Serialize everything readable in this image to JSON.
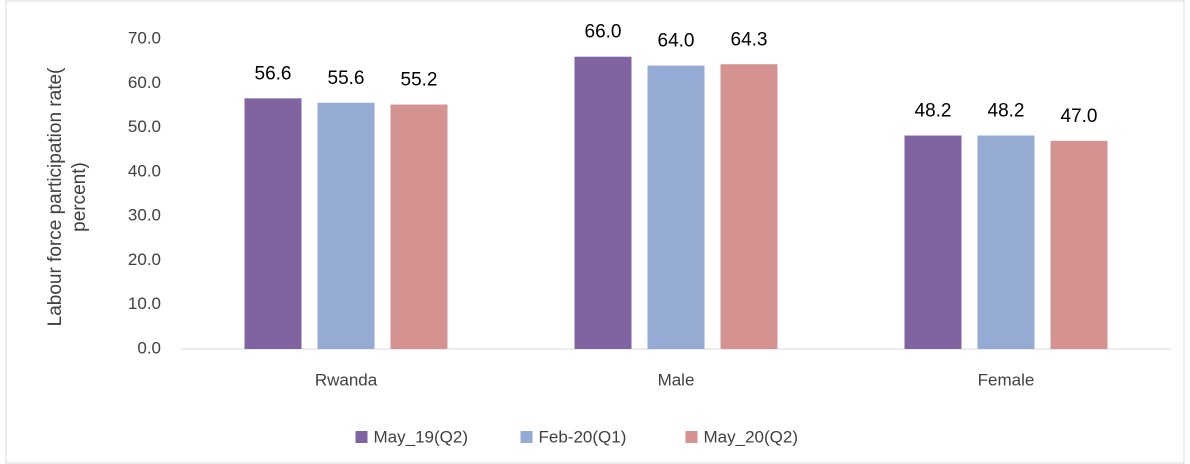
{
  "chart_data": {
    "type": "bar",
    "y_label": [
      "Labour force participation rate(",
      "percent)"
    ],
    "categories": [
      "Rwanda",
      "Male",
      "Female"
    ],
    "series": [
      {
        "name": "May_19(Q2)",
        "color": "#8064a2",
        "values": [
          56.6,
          66.0,
          48.2
        ],
        "value_labels": [
          "56.6",
          "66.0",
          "48.2"
        ]
      },
      {
        "name": "Feb-20(Q1)",
        "color": "#95abd3",
        "values": [
          55.6,
          64.0,
          48.2
        ],
        "value_labels": [
          "55.6",
          "64.0",
          "48.2"
        ]
      },
      {
        "name": "May_20(Q2)",
        "color": "#d49390",
        "values": [
          55.2,
          64.3,
          47.0
        ],
        "value_labels": [
          "55.2",
          "64.3",
          "47.0"
        ]
      }
    ],
    "ylim": [
      0,
      70
    ],
    "yticks": [
      {
        "value": 0,
        "label": "0.0"
      },
      {
        "value": 10,
        "label": "10.0"
      },
      {
        "value": 20,
        "label": "20.0"
      },
      {
        "value": 30,
        "label": "30.0"
      },
      {
        "value": 40,
        "label": "40.0"
      },
      {
        "value": 50,
        "label": "50.0"
      },
      {
        "value": 60,
        "label": "60.0"
      },
      {
        "value": 70,
        "label": "70.0"
      }
    ],
    "grid": false,
    "legend": "bottom"
  }
}
